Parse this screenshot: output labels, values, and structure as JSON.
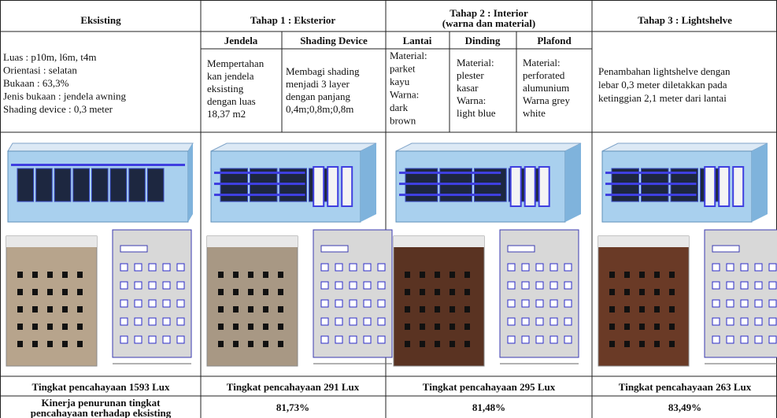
{
  "table": {
    "headers": {
      "eksisting": "Eksisting",
      "tahap1": "Tahap 1 : Eksterior",
      "tahap2": [
        "Tahap 2 : Interior",
        "(warna dan material)"
      ],
      "tahap3": "Tahap 3 : Lightshelve"
    },
    "subheaders": {
      "jendela": "Jendela",
      "shading": "Shading Device",
      "lantai": "Lantai",
      "dinding": "Dinding",
      "plafond": "Plafond"
    },
    "descriptions": {
      "eksisting": [
        "Luas : p10m, l6m, t4m",
        "Orientasi : selatan",
        "Bukaan : 63,3%",
        "Jenis bukaan : jendela awning",
        "Shading device : 0,3 meter"
      ],
      "jendela": [
        "Mempertahan",
        "kan jendela",
        "eksisting",
        "dengan luas",
        "18,37 m2"
      ],
      "shading": [
        "Membagi shading",
        "menjadi 3 layer",
        "dengan panjang",
        "0,4m;0,8m;0,8m"
      ],
      "lantai": [
        "Material:",
        "parket",
        "kayu",
        "Warna:",
        "dark",
        "brown"
      ],
      "dinding": [
        "Material:",
        "plester",
        "kasar",
        "Warna:",
        "light blue"
      ],
      "plafond": [
        "Material:",
        "perforated",
        "alumunium",
        "Warna grey",
        "white"
      ],
      "tahap3": [
        "Penambahan lightshelve dengan",
        "lebar 0,3 meter diletakkan pada",
        "ketinggian 2,1 meter dari lantai"
      ]
    },
    "lux": [
      "Tingkat pencahayaan 1593 Lux",
      "Tingkat pencahayaan 291 Lux",
      "Tingkat pencahayaan 295 Lux",
      "Tingkat pencahayaan 263 Lux"
    ],
    "kinerja": {
      "label": [
        "Kinerja penurunan tingkat",
        "pencahayaan terhadap eksisting"
      ],
      "values": [
        "81,73%",
        "81,48%",
        "83,49%"
      ]
    }
  }
}
